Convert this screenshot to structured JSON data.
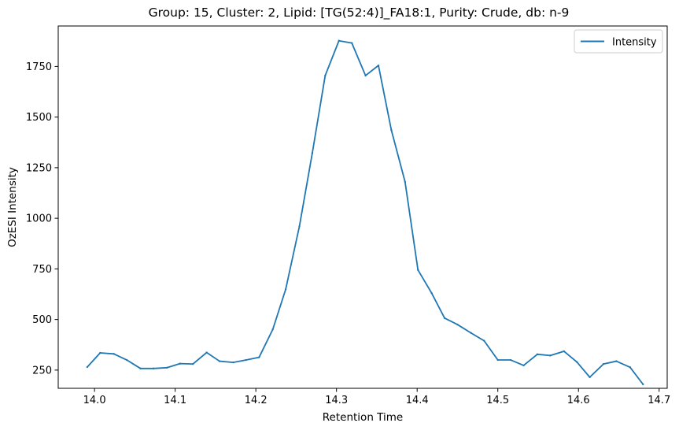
{
  "chart_data": {
    "type": "line",
    "title": "Group: 15, Cluster: 2, Lipid: [TG(52:4)]_FA18:1, Purity: Crude, db: n-9",
    "xlabel": "Retention Time",
    "ylabel": "OzESI Intensity",
    "xlim": [
      13.955,
      14.71
    ],
    "ylim": [
      160,
      1950
    ],
    "x_ticks": [
      14.0,
      14.1,
      14.2,
      14.3,
      14.4,
      14.5,
      14.6,
      14.7
    ],
    "x_tick_labels": [
      "14.0",
      "14.1",
      "14.2",
      "14.3",
      "14.4",
      "14.5",
      "14.6",
      "14.7"
    ],
    "y_ticks": [
      250,
      500,
      750,
      1000,
      1250,
      1500,
      1750
    ],
    "y_tick_labels": [
      "250",
      "500",
      "750",
      "1000",
      "1250",
      "1500",
      "1750"
    ],
    "grid": false,
    "legend_placement": "top-right",
    "series": [
      {
        "name": "Intensity",
        "color": "#1f77b4",
        "x": [
          13.991,
          14.007,
          14.024,
          14.04,
          14.057,
          14.073,
          14.09,
          14.106,
          14.122,
          14.139,
          14.155,
          14.172,
          14.188,
          14.204,
          14.221,
          14.237,
          14.254,
          14.27,
          14.286,
          14.303,
          14.319,
          14.336,
          14.352,
          14.368,
          14.385,
          14.401,
          14.418,
          14.434,
          14.45,
          14.467,
          14.483,
          14.5,
          14.516,
          14.532,
          14.549,
          14.565,
          14.582,
          14.598,
          14.614,
          14.631,
          14.647,
          14.664,
          14.68
        ],
        "values": [
          265,
          335,
          330,
          300,
          258,
          258,
          262,
          282,
          280,
          337,
          294,
          288,
          300,
          313,
          451,
          649,
          960,
          1322,
          1705,
          1877,
          1866,
          1705,
          1755,
          1436,
          1180,
          745,
          630,
          507,
          475,
          433,
          395,
          300,
          300,
          273,
          328,
          322,
          343,
          290,
          215,
          280,
          294,
          264,
          180
        ]
      }
    ]
  }
}
